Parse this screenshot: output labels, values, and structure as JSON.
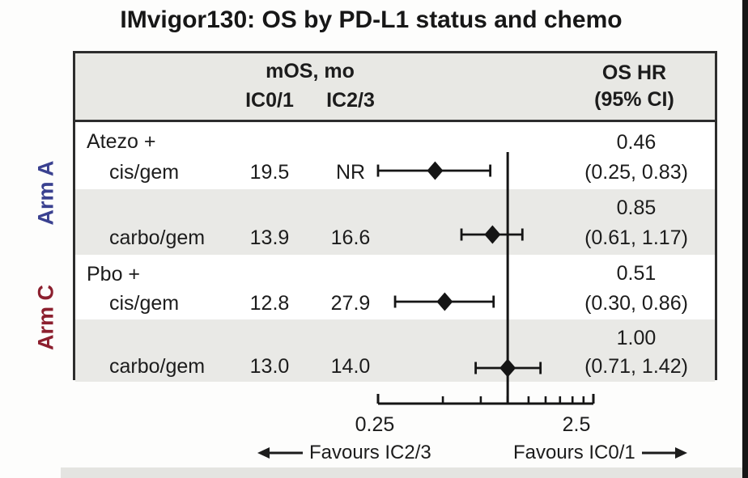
{
  "title": "IMvigor130: OS by PD-L1 status and chemo",
  "arms": {
    "arm_a": "Arm A",
    "arm_c": "Arm C"
  },
  "table": {
    "col_group_header": "mOS, mo",
    "col_ic01": "IC0/1",
    "col_ic23": "IC2/3",
    "col_hr_line1": "OS HR",
    "col_hr_line2": "(95% CI)",
    "rows": [
      {
        "group": "Atezo +",
        "label": "cis/gem",
        "ic01": "19.5",
        "ic23": "NR",
        "hr": "0.46",
        "ci": "(0.25, 0.83)"
      },
      {
        "group": "",
        "label": "carbo/gem",
        "ic01": "13.9",
        "ic23": "16.6",
        "hr": "0.85",
        "ci": "(0.61, 1.17)"
      },
      {
        "group": "Pbo +",
        "label": "cis/gem",
        "ic01": "12.8",
        "ic23": "27.9",
        "hr": "0.51",
        "ci": "(0.30, 0.86)"
      },
      {
        "group": "",
        "label": "carbo/gem",
        "ic01": "13.0",
        "ic23": "14.0",
        "hr": "1.00",
        "ci": "(0.71, 1.42)"
      }
    ]
  },
  "axis": {
    "tick_left": "0.25",
    "tick_right": "2.5",
    "favours_left": "Favours IC2/3",
    "favours_right": "Favours IC0/1"
  },
  "chart_data": {
    "type": "scatter",
    "subtype": "forest-plot",
    "title": "IMvigor130: OS by PD-L1 status and chemo",
    "x_scale": "log",
    "x_range": [
      0.25,
      2.5
    ],
    "x_ticks": [
      0.25,
      0.5,
      0.75,
      1.0,
      1.25,
      1.5,
      1.75,
      2.0,
      2.25,
      2.5
    ],
    "x_tick_labels_shown": [
      "0.25",
      "2.5"
    ],
    "reference_line": 1.0,
    "legend_left": "Favours IC2/3",
    "legend_right": "Favours IC0/1",
    "points": [
      {
        "label": "Atezo + cis/gem",
        "mos_ic01": 19.5,
        "mos_ic23": null,
        "mos_ic23_text": "NR",
        "hr": 0.46,
        "ci_low": 0.25,
        "ci_high": 0.83
      },
      {
        "label": "Atezo + carbo/gem",
        "mos_ic01": 13.9,
        "mos_ic23": 16.6,
        "hr": 0.85,
        "ci_low": 0.61,
        "ci_high": 1.17
      },
      {
        "label": "Pbo + cis/gem",
        "mos_ic01": 12.8,
        "mos_ic23": 27.9,
        "hr": 0.51,
        "ci_low": 0.3,
        "ci_high": 0.86
      },
      {
        "label": "Pbo + carbo/gem",
        "mos_ic01": 13.0,
        "mos_ic23": 14.0,
        "hr": 1.0,
        "ci_low": 0.71,
        "ci_high": 1.42
      }
    ]
  },
  "colors": {
    "arm_a": "#3a4190",
    "arm_c": "#8c1f2e",
    "header_bg": "#e8e8e4",
    "stripe_bg": "#e9e9e6",
    "table_border": "#2d2d2d",
    "marker": "#151515"
  }
}
